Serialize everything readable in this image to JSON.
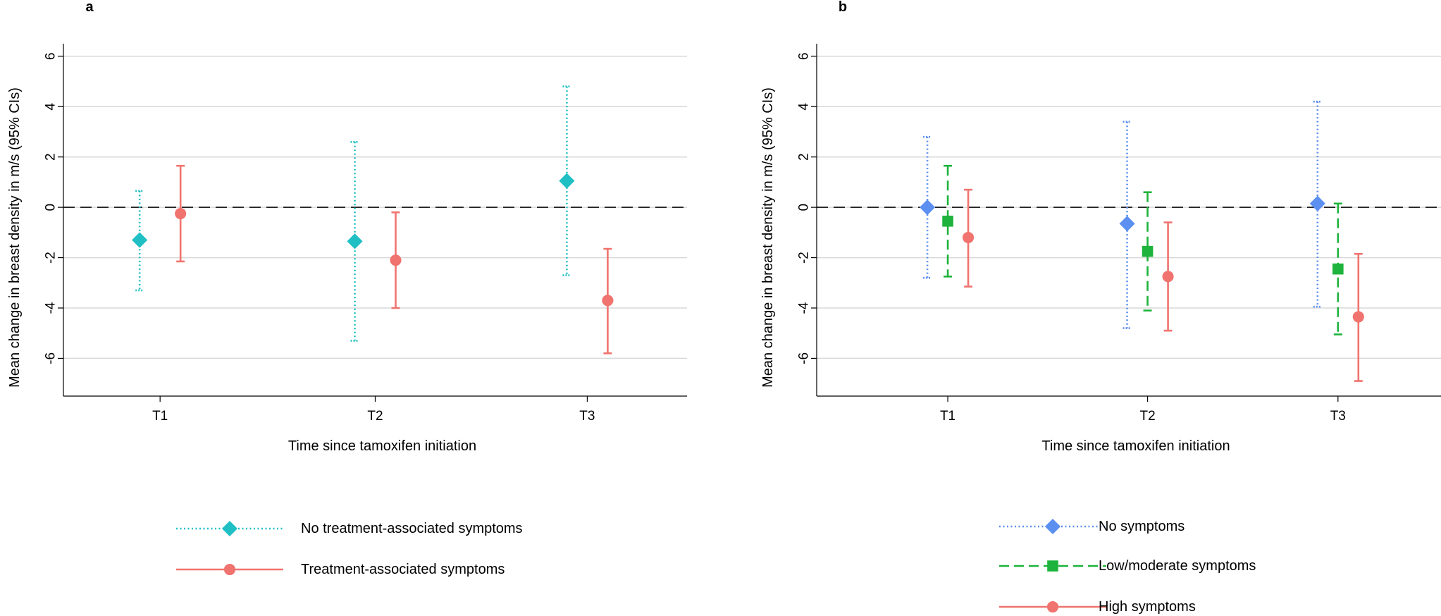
{
  "chart_data": [
    {
      "panel": "a",
      "type": "scatter",
      "title": "",
      "xlabel": "Time since tamoxifen initiation",
      "ylabel": "Mean change in breast density in m/s (95% CIs)",
      "categories": [
        "T1",
        "T2",
        "T3"
      ],
      "yticks": [
        6,
        4,
        2,
        0,
        -2,
        -4,
        -6
      ],
      "ylim": [
        -7.5,
        6.5
      ],
      "reference_line": 0,
      "grid": true,
      "series": [
        {
          "name": "No treatment-associated symptoms",
          "color": "#1FBFC3",
          "marker": "diamond",
          "line_style": "dotted",
          "values": [
            -1.3,
            -1.35,
            1.05
          ],
          "ci_low": [
            -3.3,
            -5.3,
            -2.7
          ],
          "ci_high": [
            0.65,
            2.6,
            4.8
          ]
        },
        {
          "name": "Treatment-associated symptoms",
          "color": "#F0736F",
          "marker": "circle",
          "line_style": "solid",
          "values": [
            -0.25,
            -2.1,
            -3.7
          ],
          "ci_low": [
            -2.15,
            -4.0,
            -5.8
          ],
          "ci_high": [
            1.65,
            -0.2,
            -1.65
          ]
        }
      ]
    },
    {
      "panel": "b",
      "type": "scatter",
      "title": "",
      "xlabel": "Time since tamoxifen initiation",
      "ylabel": "Mean change in breast density in m/s (95% CIs)",
      "categories": [
        "T1",
        "T2",
        "T3"
      ],
      "yticks": [
        6,
        4,
        2,
        0,
        -2,
        -4,
        -6
      ],
      "ylim": [
        -7.5,
        6.5
      ],
      "reference_line": 0,
      "grid": true,
      "series": [
        {
          "name": "No symptoms",
          "color": "#5B8FF0",
          "marker": "diamond",
          "line_style": "dotted",
          "values": [
            0.0,
            -0.65,
            0.15
          ],
          "ci_low": [
            -2.8,
            -4.8,
            -3.95
          ],
          "ci_high": [
            2.8,
            3.4,
            4.2
          ]
        },
        {
          "name": "Low/moderate symptoms",
          "color": "#1DB33C",
          "marker": "square",
          "line_style": "dashed",
          "values": [
            -0.55,
            -1.75,
            -2.45
          ],
          "ci_low": [
            -2.75,
            -4.1,
            -5.05
          ],
          "ci_high": [
            1.65,
            0.6,
            0.15
          ]
        },
        {
          "name": "High symptoms",
          "color": "#F0736F",
          "marker": "circle",
          "line_style": "solid",
          "values": [
            -1.2,
            -2.75,
            -4.35
          ],
          "ci_low": [
            -3.15,
            -4.9,
            -6.9
          ],
          "ci_high": [
            0.7,
            -0.6,
            -1.85
          ]
        }
      ]
    }
  ]
}
